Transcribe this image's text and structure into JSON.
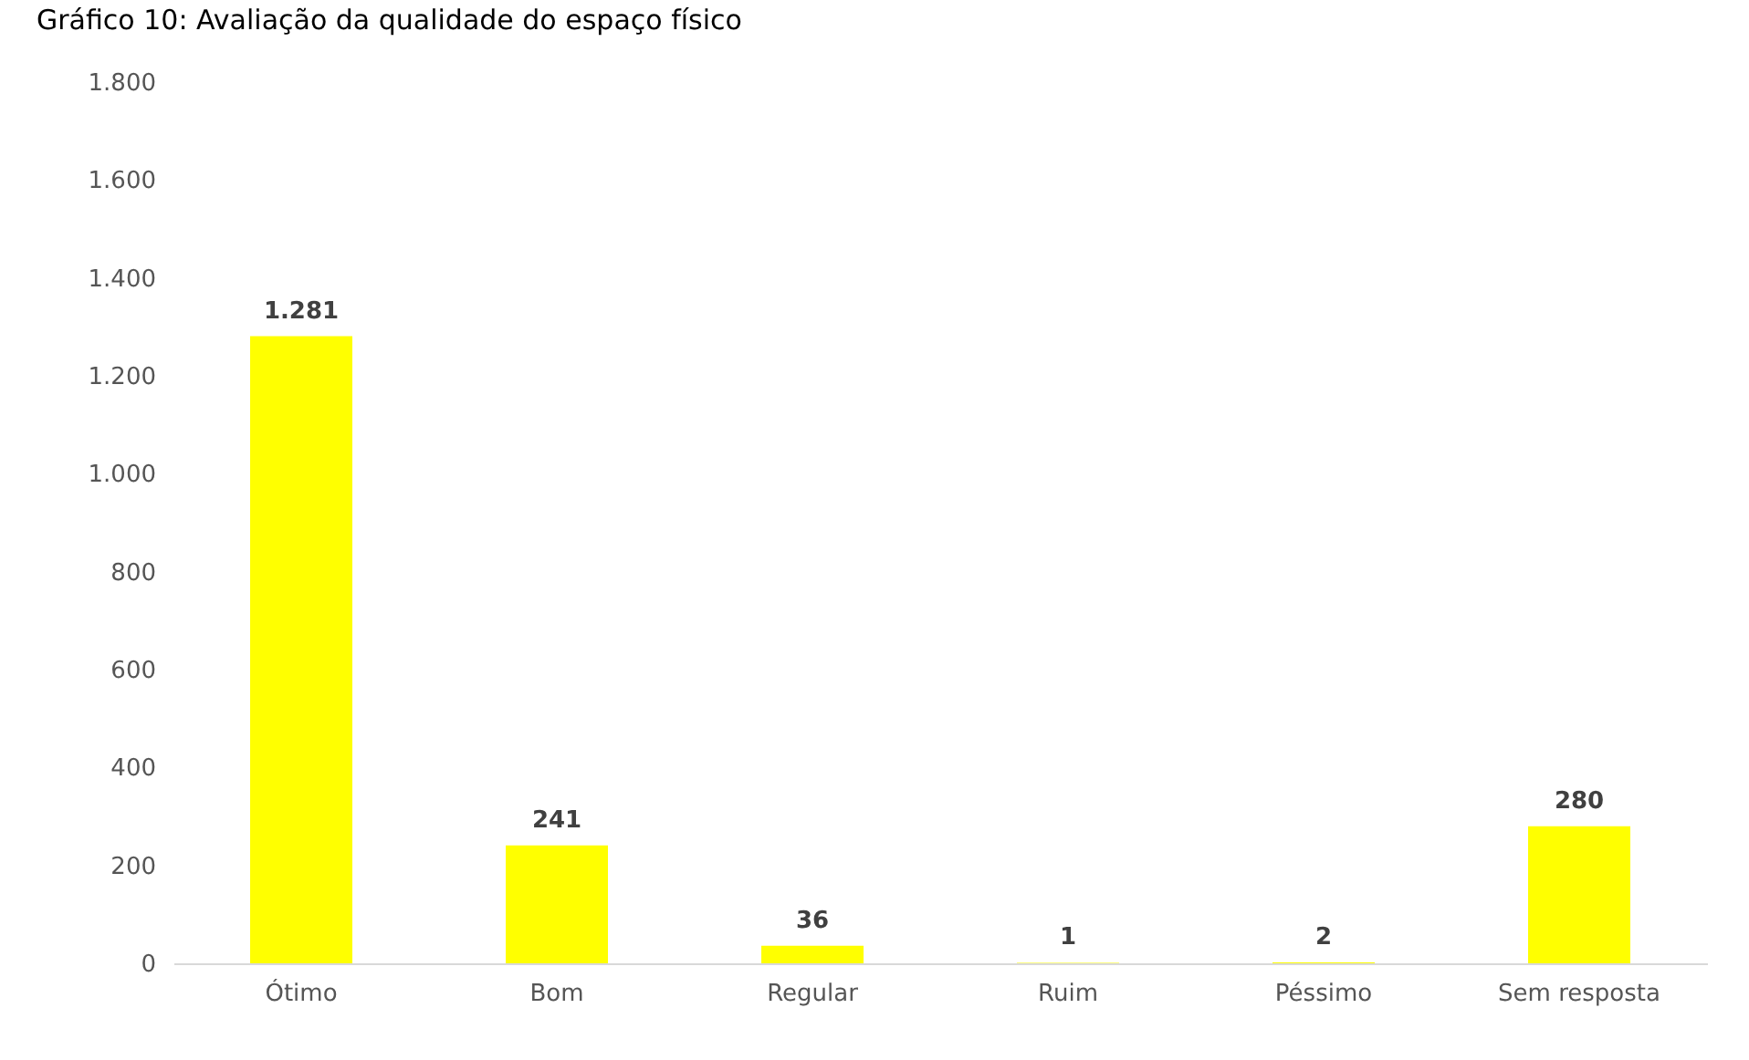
{
  "chart_data": {
    "type": "bar",
    "title": "Gráfico 10: Avaliação da qualidade do espaço físico",
    "categories": [
      "Ótimo",
      "Bom",
      "Regular",
      "Ruim",
      "Péssimo",
      "Sem resposta"
    ],
    "values": [
      1281,
      241,
      36,
      1,
      2,
      280
    ],
    "value_labels": [
      "1.281",
      "241",
      "36",
      "1",
      "2",
      "280"
    ],
    "color": "#ffff00",
    "ylim": [
      0,
      1800
    ],
    "yticks": [
      {
        "value": 0,
        "label": "0"
      },
      {
        "value": 200,
        "label": "200"
      },
      {
        "value": 400,
        "label": "400"
      },
      {
        "value": 600,
        "label": "600"
      },
      {
        "value": 800,
        "label": "800"
      },
      {
        "value": 1000,
        "label": "1.000"
      },
      {
        "value": 1200,
        "label": "1.200"
      },
      {
        "value": 1400,
        "label": "1.400"
      },
      {
        "value": 1600,
        "label": "1.600"
      },
      {
        "value": 1800,
        "label": "1.800"
      }
    ],
    "grid": false
  }
}
